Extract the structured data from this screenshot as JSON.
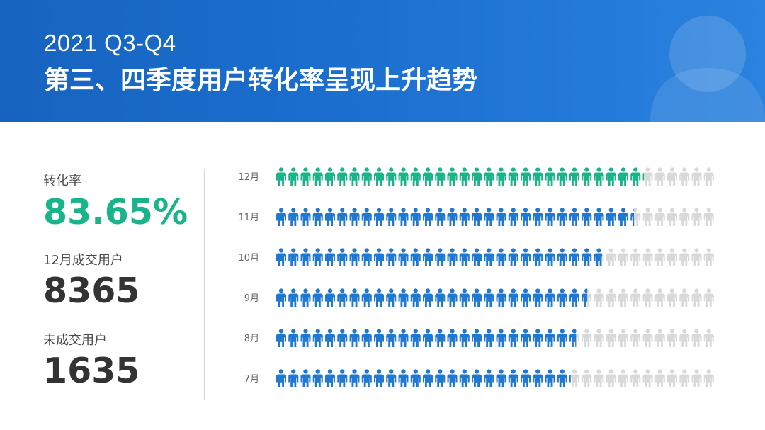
{
  "header": {
    "title": "2021 Q3-Q4",
    "subtitle": "第三、四季度用户转化率呈现上升趋势"
  },
  "stats": {
    "conversion_label": "转化率",
    "conversion_value": "83.65%",
    "converted_label": "12月成交用户",
    "converted_value": "8365",
    "unconverted_label": "未成交用户",
    "unconverted_value": "1635"
  },
  "colors": {
    "header_start": "#1763bf",
    "header_end": "#2b82df",
    "highlight_green": "#19b48a",
    "blue": "#1f78d1",
    "gray": "#d9d9d9",
    "text_dark": "#333333"
  },
  "chart_data": {
    "type": "bar",
    "title": "",
    "categories": [
      "12月",
      "11月",
      "10月",
      "9月",
      "8月",
      "7月"
    ],
    "series": [
      {
        "values": [
          83.65,
          81.5,
          74.5,
          71,
          68.5,
          67
        ]
      }
    ],
    "ylim": [
      0,
      100
    ],
    "grid": false,
    "legend": "none",
    "highlighted_category": "12月",
    "unit": "%"
  }
}
